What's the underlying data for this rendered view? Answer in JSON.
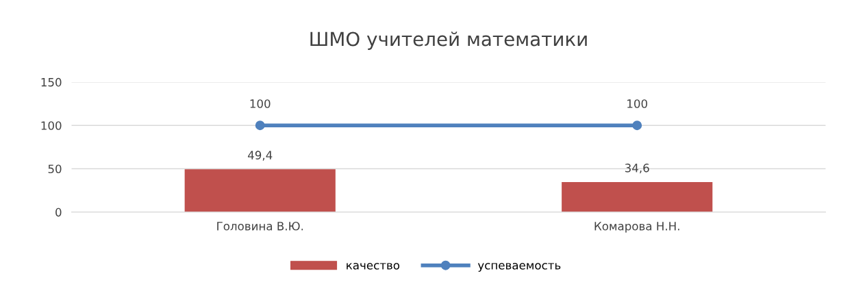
{
  "chart_data": {
    "type": "bar",
    "title": "ШМО учителей математики",
    "categories": [
      "Головина В.Ю.",
      "Комарова Н.Н."
    ],
    "series": [
      {
        "name": "качество",
        "color": "#c0504d",
        "values": [
          49.4,
          34.6
        ],
        "value_labels": [
          "49,4",
          "34,6"
        ]
      },
      {
        "name": "успеваемость",
        "type": "line",
        "color": "#4f81bd",
        "values": [
          100,
          100
        ],
        "value_labels": [
          "100",
          "100"
        ]
      }
    ],
    "ylim": [
      0,
      150
    ],
    "yticks": [
      0,
      50,
      100,
      150
    ],
    "grid": "y",
    "legend": "bottom",
    "marker": "circle",
    "line_style": "solid"
  }
}
